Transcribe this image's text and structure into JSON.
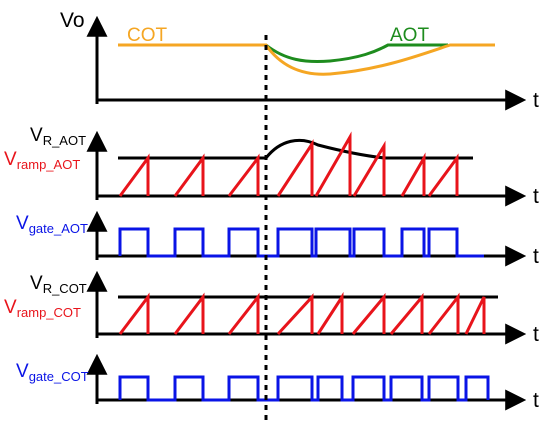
{
  "colors": {
    "axis": "#000000",
    "cot": "#F5A623",
    "aot": "#1E8C1E",
    "ramp": "#E8141B",
    "gate": "#0A14E6",
    "reference": "#000000",
    "event_line": "#000000"
  },
  "labels": {
    "vo": "Vo",
    "cot": "COT",
    "aot": "AOT",
    "time_axis": "t",
    "v_r_aot_main": "V",
    "v_r_aot_sub": "R_AOT",
    "v_ramp_aot_main": "V",
    "v_ramp_aot_sub": "ramp_AOT",
    "v_gate_aot_main": "V",
    "v_gate_aot_sub": "gate_AOT",
    "v_r_cot_main": "V",
    "v_r_cot_sub": "R_COT",
    "v_ramp_cot_main": "V",
    "v_ramp_cot_sub": "ramp_COT",
    "v_gate_cot_main": "V",
    "v_gate_cot_sub": "gate_COT"
  }
}
